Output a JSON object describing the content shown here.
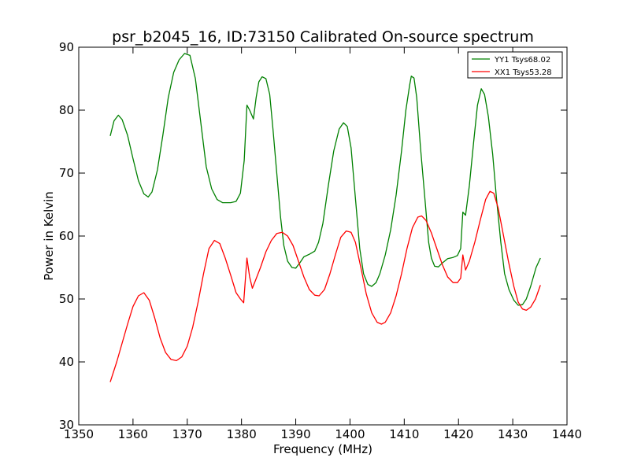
{
  "chart_data": {
    "type": "line",
    "title": "psr_b2045_16, ID:73150 Calibrated On-source spectrum",
    "xlabel": "Frequency (MHz)",
    "ylabel": "Power in Kelvin",
    "xlim": [
      1350,
      1440
    ],
    "ylim": [
      30,
      90
    ],
    "xticks": [
      "1350",
      "1360",
      "1370",
      "1380",
      "1390",
      "1400",
      "1410",
      "1420",
      "1430",
      "1440"
    ],
    "yticks": [
      "30",
      "40",
      "50",
      "60",
      "70",
      "80",
      "90"
    ],
    "grid": false,
    "legend_position": "top-right",
    "series": [
      {
        "name": "YY1 Tsys68.02",
        "color": "#008000",
        "points": [
          [
            1355.8,
            75.9
          ],
          [
            1356.5,
            78.3
          ],
          [
            1357.3,
            79.2
          ],
          [
            1358.0,
            78.5
          ],
          [
            1359.0,
            76.0
          ],
          [
            1360.0,
            72.3
          ],
          [
            1361.0,
            68.8
          ],
          [
            1362.0,
            66.7
          ],
          [
            1362.8,
            66.2
          ],
          [
            1363.5,
            67.0
          ],
          [
            1364.5,
            70.5
          ],
          [
            1365.5,
            76.0
          ],
          [
            1366.5,
            82.0
          ],
          [
            1367.5,
            86.0
          ],
          [
            1368.5,
            88.0
          ],
          [
            1369.5,
            89.0
          ],
          [
            1370.5,
            88.7
          ],
          [
            1371.5,
            85.0
          ],
          [
            1372.5,
            78.0
          ],
          [
            1373.5,
            71.0
          ],
          [
            1374.5,
            67.5
          ],
          [
            1375.5,
            65.8
          ],
          [
            1376.5,
            65.3
          ],
          [
            1378.0,
            65.3
          ],
          [
            1379.0,
            65.5
          ],
          [
            1379.8,
            66.8
          ],
          [
            1380.5,
            72.0
          ],
          [
            1381.0,
            80.8
          ],
          [
            1381.5,
            80.0
          ],
          [
            1382.2,
            78.6
          ],
          [
            1382.7,
            82.0
          ],
          [
            1383.2,
            84.5
          ],
          [
            1383.8,
            85.3
          ],
          [
            1384.5,
            85.0
          ],
          [
            1385.2,
            82.5
          ],
          [
            1385.8,
            77.0
          ],
          [
            1386.5,
            70.0
          ],
          [
            1387.2,
            63.0
          ],
          [
            1387.8,
            58.5
          ],
          [
            1388.5,
            56.0
          ],
          [
            1389.3,
            55.0
          ],
          [
            1390.0,
            54.9
          ],
          [
            1390.8,
            55.8
          ],
          [
            1391.5,
            56.7
          ],
          [
            1392.5,
            57.1
          ],
          [
            1393.5,
            57.6
          ],
          [
            1394.2,
            59.0
          ],
          [
            1395.0,
            62.0
          ],
          [
            1396.0,
            68.0
          ],
          [
            1397.0,
            73.5
          ],
          [
            1398.0,
            77.0
          ],
          [
            1398.8,
            78.0
          ],
          [
            1399.5,
            77.4
          ],
          [
            1400.2,
            74.0
          ],
          [
            1401.0,
            66.0
          ],
          [
            1401.8,
            58.0
          ],
          [
            1402.5,
            54.0
          ],
          [
            1403.3,
            52.3
          ],
          [
            1404.0,
            52.0
          ],
          [
            1404.8,
            52.6
          ],
          [
            1405.5,
            54.0
          ],
          [
            1406.5,
            57.0
          ],
          [
            1407.5,
            61.0
          ],
          [
            1408.5,
            66.5
          ],
          [
            1409.5,
            73.5
          ],
          [
            1410.3,
            80.0
          ],
          [
            1411.0,
            84.0
          ],
          [
            1411.3,
            85.4
          ],
          [
            1411.8,
            85.1
          ],
          [
            1412.3,
            82.0
          ],
          [
            1413.0,
            74.0
          ],
          [
            1413.8,
            66.0
          ],
          [
            1414.5,
            59.0
          ],
          [
            1415.0,
            56.5
          ],
          [
            1415.6,
            55.2
          ],
          [
            1416.3,
            55.1
          ],
          [
            1417.0,
            55.7
          ],
          [
            1418.0,
            56.4
          ],
          [
            1419.0,
            56.6
          ],
          [
            1419.8,
            56.9
          ],
          [
            1420.4,
            58.0
          ],
          [
            1420.8,
            63.8
          ],
          [
            1421.3,
            63.3
          ],
          [
            1422.0,
            68.0
          ],
          [
            1422.8,
            75.0
          ],
          [
            1423.5,
            80.8
          ],
          [
            1424.2,
            83.4
          ],
          [
            1424.8,
            82.5
          ],
          [
            1425.5,
            79.0
          ],
          [
            1426.3,
            73.0
          ],
          [
            1427.0,
            66.0
          ],
          [
            1427.8,
            59.0
          ],
          [
            1428.5,
            54.0
          ],
          [
            1429.3,
            51.5
          ],
          [
            1430.2,
            49.8
          ],
          [
            1431.0,
            49.0
          ],
          [
            1431.8,
            49.1
          ],
          [
            1432.5,
            50.0
          ],
          [
            1433.3,
            52.0
          ],
          [
            1434.3,
            55.0
          ],
          [
            1435.1,
            56.5
          ]
        ]
      },
      {
        "name": "XX1 Tsys53.28",
        "color": "#ff0000",
        "points": [
          [
            1355.8,
            36.8
          ],
          [
            1357.0,
            40.0
          ],
          [
            1358.0,
            43.0
          ],
          [
            1359.0,
            46.0
          ],
          [
            1360.0,
            48.8
          ],
          [
            1361.0,
            50.5
          ],
          [
            1362.0,
            51.0
          ],
          [
            1363.0,
            49.8
          ],
          [
            1364.0,
            47.0
          ],
          [
            1365.0,
            43.8
          ],
          [
            1366.0,
            41.5
          ],
          [
            1367.0,
            40.4
          ],
          [
            1368.0,
            40.2
          ],
          [
            1369.0,
            40.8
          ],
          [
            1370.0,
            42.5
          ],
          [
            1371.0,
            45.5
          ],
          [
            1372.0,
            49.5
          ],
          [
            1373.0,
            54.0
          ],
          [
            1374.0,
            58.0
          ],
          [
            1375.0,
            59.3
          ],
          [
            1376.0,
            58.8
          ],
          [
            1377.0,
            56.5
          ],
          [
            1378.0,
            53.8
          ],
          [
            1379.0,
            51.0
          ],
          [
            1379.8,
            50.0
          ],
          [
            1380.4,
            49.4
          ],
          [
            1381.0,
            56.5
          ],
          [
            1381.5,
            53.5
          ],
          [
            1382.0,
            51.7
          ],
          [
            1382.6,
            53.0
          ],
          [
            1383.5,
            55.0
          ],
          [
            1384.5,
            57.5
          ],
          [
            1385.5,
            59.3
          ],
          [
            1386.5,
            60.4
          ],
          [
            1387.5,
            60.6
          ],
          [
            1388.5,
            60.0
          ],
          [
            1389.5,
            58.5
          ],
          [
            1390.5,
            56.0
          ],
          [
            1391.5,
            53.5
          ],
          [
            1392.5,
            51.5
          ],
          [
            1393.5,
            50.6
          ],
          [
            1394.3,
            50.5
          ],
          [
            1395.3,
            51.5
          ],
          [
            1396.3,
            54.0
          ],
          [
            1397.3,
            57.0
          ],
          [
            1398.3,
            59.8
          ],
          [
            1399.3,
            60.8
          ],
          [
            1400.2,
            60.6
          ],
          [
            1401.0,
            59.0
          ],
          [
            1402.0,
            55.0
          ],
          [
            1403.0,
            50.8
          ],
          [
            1404.0,
            47.8
          ],
          [
            1405.0,
            46.3
          ],
          [
            1405.8,
            46.0
          ],
          [
            1406.5,
            46.3
          ],
          [
            1407.5,
            47.8
          ],
          [
            1408.5,
            50.5
          ],
          [
            1409.5,
            54.0
          ],
          [
            1410.5,
            58.0
          ],
          [
            1411.5,
            61.3
          ],
          [
            1412.5,
            63.0
          ],
          [
            1413.2,
            63.2
          ],
          [
            1414.0,
            62.5
          ],
          [
            1415.0,
            60.5
          ],
          [
            1416.0,
            58.0
          ],
          [
            1417.0,
            55.5
          ],
          [
            1418.0,
            53.5
          ],
          [
            1419.0,
            52.6
          ],
          [
            1419.8,
            52.6
          ],
          [
            1420.4,
            53.3
          ],
          [
            1420.8,
            57.0
          ],
          [
            1421.3,
            54.6
          ],
          [
            1422.0,
            56.0
          ],
          [
            1423.0,
            59.0
          ],
          [
            1424.0,
            62.5
          ],
          [
            1425.0,
            65.8
          ],
          [
            1425.8,
            67.1
          ],
          [
            1426.5,
            66.8
          ],
          [
            1427.3,
            64.5
          ],
          [
            1428.2,
            60.5
          ],
          [
            1429.2,
            56.0
          ],
          [
            1430.2,
            52.0
          ],
          [
            1431.0,
            49.5
          ],
          [
            1431.8,
            48.4
          ],
          [
            1432.5,
            48.2
          ],
          [
            1433.3,
            48.7
          ],
          [
            1434.2,
            50.0
          ],
          [
            1435.1,
            52.2
          ]
        ]
      }
    ]
  }
}
